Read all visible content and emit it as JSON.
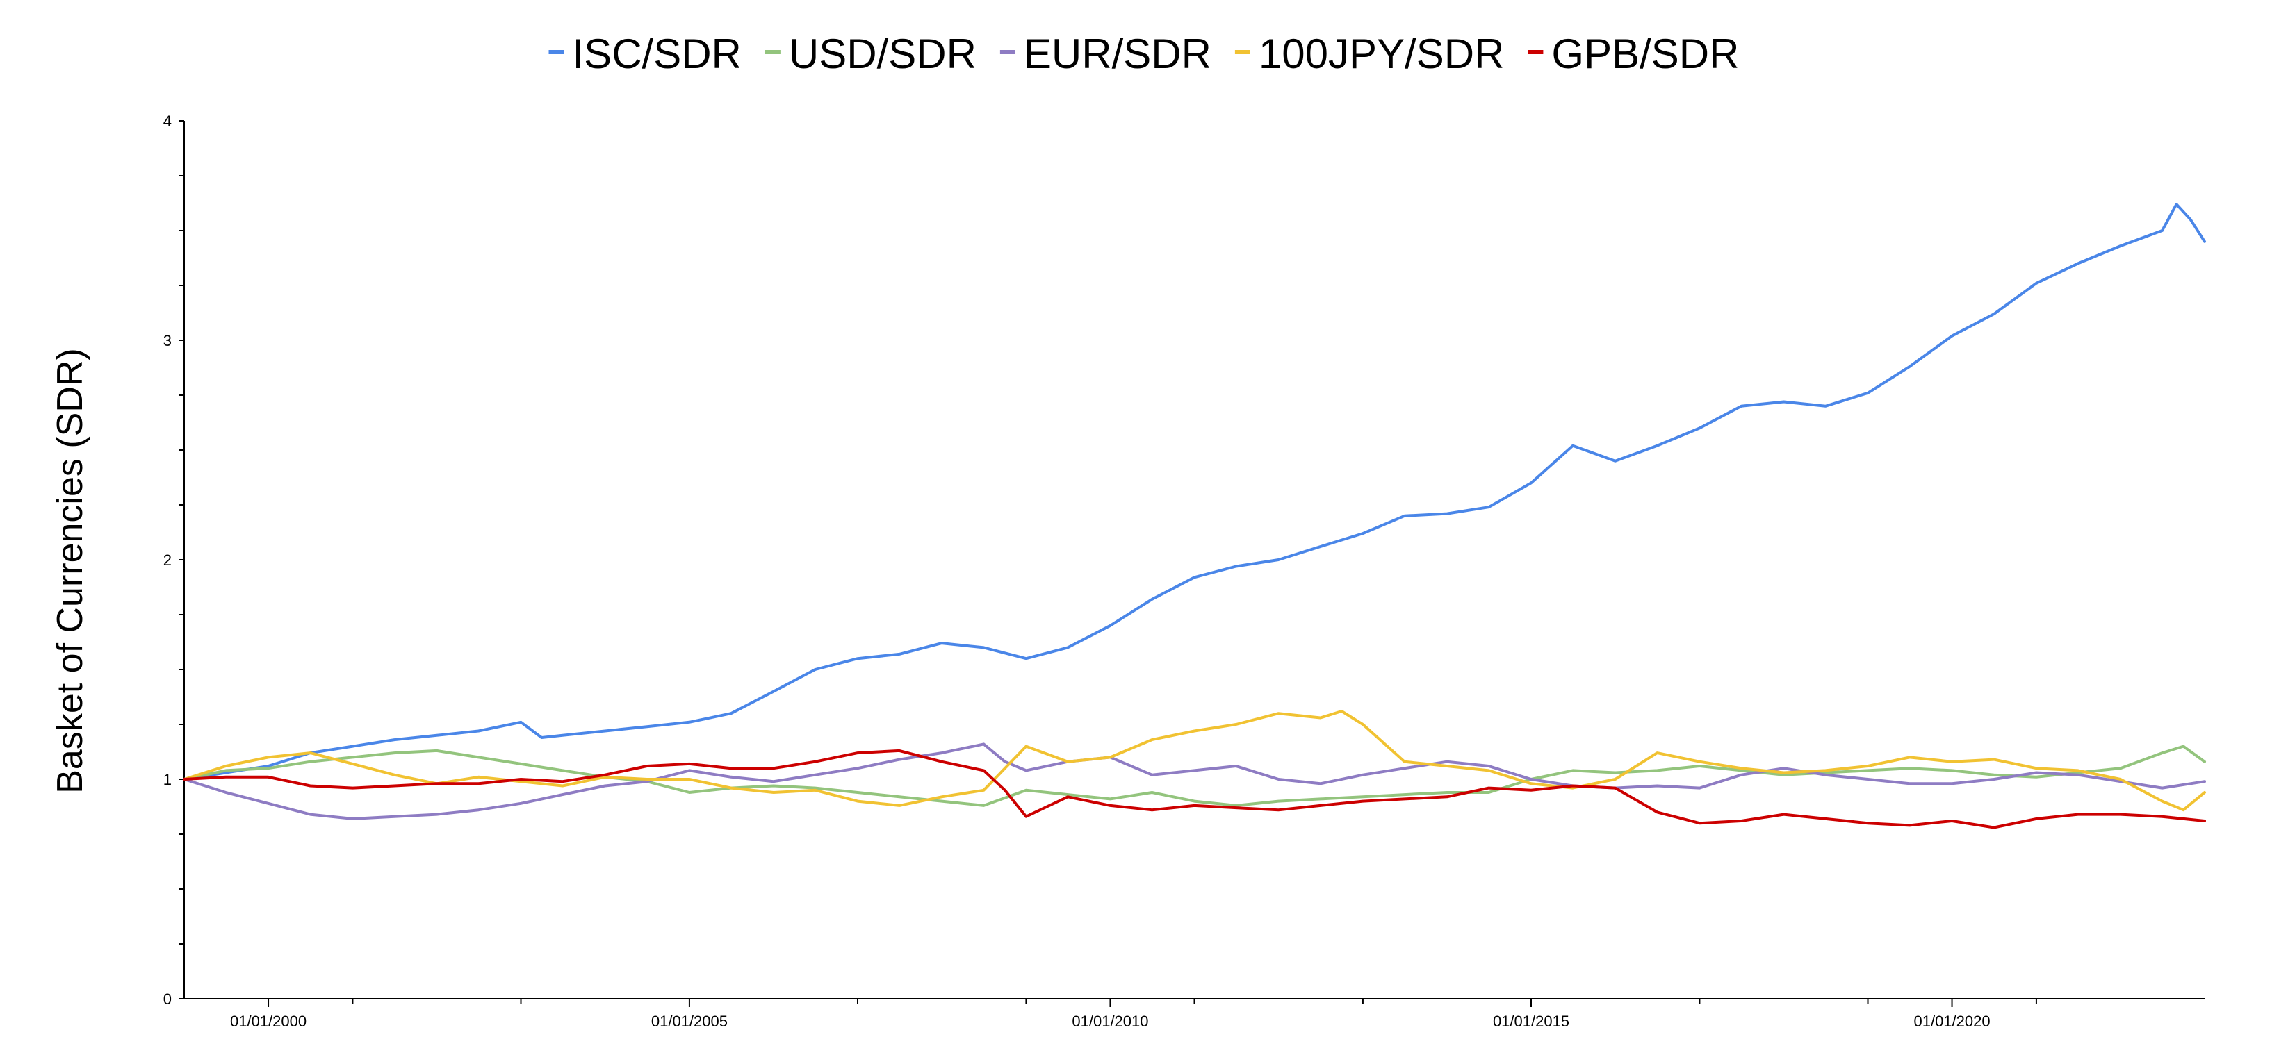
{
  "chart_data": {
    "type": "line",
    "title": "",
    "xlabel": "",
    "ylabel": "Basket of Currencies (SDR)",
    "xlim": [
      "1999-01-01",
      "2023-01-01"
    ],
    "ylim": [
      0,
      4
    ],
    "y_ticks": [
      0,
      1,
      2,
      3,
      4
    ],
    "x_ticks": [
      {
        "date": "2000-01-01",
        "label": "01/01/2000"
      },
      {
        "date": "2005-01-01",
        "label": "01/01/2005"
      },
      {
        "date": "2010-01-01",
        "label": "01/01/2010"
      },
      {
        "date": "2015-01-01",
        "label": "01/01/2015"
      },
      {
        "date": "2020-01-01",
        "label": "01/01/2020"
      }
    ],
    "legend_position": "top",
    "grid": false,
    "series": [
      {
        "name": "ISC/SDR",
        "color": "#4a86e8",
        "points": [
          [
            "1999-01-01",
            1.0
          ],
          [
            "1999-07-01",
            1.03
          ],
          [
            "2000-01-01",
            1.06
          ],
          [
            "2000-07-01",
            1.12
          ],
          [
            "2001-01-01",
            1.15
          ],
          [
            "2001-07-01",
            1.18
          ],
          [
            "2002-01-01",
            1.2
          ],
          [
            "2002-07-01",
            1.22
          ],
          [
            "2003-01-01",
            1.26
          ],
          [
            "2003-04-01",
            1.19
          ],
          [
            "2003-07-01",
            1.2
          ],
          [
            "2004-01-01",
            1.22
          ],
          [
            "2004-07-01",
            1.24
          ],
          [
            "2005-01-01",
            1.26
          ],
          [
            "2005-07-01",
            1.3
          ],
          [
            "2006-01-01",
            1.4
          ],
          [
            "2006-07-01",
            1.5
          ],
          [
            "2007-01-01",
            1.55
          ],
          [
            "2007-07-01",
            1.57
          ],
          [
            "2008-01-01",
            1.62
          ],
          [
            "2008-07-01",
            1.6
          ],
          [
            "2009-01-01",
            1.55
          ],
          [
            "2009-07-01",
            1.6
          ],
          [
            "2010-01-01",
            1.7
          ],
          [
            "2010-07-01",
            1.82
          ],
          [
            "2011-01-01",
            1.92
          ],
          [
            "2011-07-01",
            1.97
          ],
          [
            "2012-01-01",
            2.0
          ],
          [
            "2012-07-01",
            2.06
          ],
          [
            "2013-01-01",
            2.12
          ],
          [
            "2013-07-01",
            2.2
          ],
          [
            "2014-01-01",
            2.21
          ],
          [
            "2014-07-01",
            2.24
          ],
          [
            "2015-01-01",
            2.35
          ],
          [
            "2015-07-01",
            2.52
          ],
          [
            "2016-01-01",
            2.45
          ],
          [
            "2016-07-01",
            2.52
          ],
          [
            "2017-01-01",
            2.6
          ],
          [
            "2017-07-01",
            2.7
          ],
          [
            "2018-01-01",
            2.72
          ],
          [
            "2018-07-01",
            2.7
          ],
          [
            "2019-01-01",
            2.76
          ],
          [
            "2019-07-01",
            2.88
          ],
          [
            "2020-01-01",
            3.02
          ],
          [
            "2020-07-01",
            3.12
          ],
          [
            "2021-01-01",
            3.26
          ],
          [
            "2021-07-01",
            3.35
          ],
          [
            "2022-01-01",
            3.43
          ],
          [
            "2022-07-01",
            3.5
          ],
          [
            "2022-09-01",
            3.62
          ],
          [
            "2022-11-01",
            3.55
          ],
          [
            "2023-01-01",
            3.45
          ]
        ]
      },
      {
        "name": "USD/SDR",
        "color": "#93c47d",
        "points": [
          [
            "1999-01-01",
            1.0
          ],
          [
            "1999-07-01",
            1.04
          ],
          [
            "2000-01-01",
            1.05
          ],
          [
            "2000-07-01",
            1.08
          ],
          [
            "2001-01-01",
            1.1
          ],
          [
            "2001-07-01",
            1.12
          ],
          [
            "2002-01-01",
            1.13
          ],
          [
            "2002-07-01",
            1.1
          ],
          [
            "2003-01-01",
            1.07
          ],
          [
            "2003-07-01",
            1.04
          ],
          [
            "2004-01-01",
            1.01
          ],
          [
            "2004-07-01",
            0.99
          ],
          [
            "2005-01-01",
            0.94
          ],
          [
            "2005-07-01",
            0.96
          ],
          [
            "2006-01-01",
            0.97
          ],
          [
            "2006-07-01",
            0.96
          ],
          [
            "2007-01-01",
            0.94
          ],
          [
            "2007-07-01",
            0.92
          ],
          [
            "2008-01-01",
            0.9
          ],
          [
            "2008-07-01",
            0.88
          ],
          [
            "2009-01-01",
            0.95
          ],
          [
            "2009-07-01",
            0.93
          ],
          [
            "2010-01-01",
            0.91
          ],
          [
            "2010-07-01",
            0.94
          ],
          [
            "2011-01-01",
            0.9
          ],
          [
            "2011-07-01",
            0.88
          ],
          [
            "2012-01-01",
            0.9
          ],
          [
            "2012-07-01",
            0.91
          ],
          [
            "2013-01-01",
            0.92
          ],
          [
            "2013-07-01",
            0.93
          ],
          [
            "2014-01-01",
            0.94
          ],
          [
            "2014-07-01",
            0.94
          ],
          [
            "2015-01-01",
            1.0
          ],
          [
            "2015-07-01",
            1.04
          ],
          [
            "2016-01-01",
            1.03
          ],
          [
            "2016-07-01",
            1.04
          ],
          [
            "2017-01-01",
            1.06
          ],
          [
            "2017-07-01",
            1.04
          ],
          [
            "2018-01-01",
            1.02
          ],
          [
            "2018-07-01",
            1.03
          ],
          [
            "2019-01-01",
            1.04
          ],
          [
            "2019-07-01",
            1.05
          ],
          [
            "2020-01-01",
            1.04
          ],
          [
            "2020-07-01",
            1.02
          ],
          [
            "2021-01-01",
            1.01
          ],
          [
            "2021-07-01",
            1.03
          ],
          [
            "2022-01-01",
            1.05
          ],
          [
            "2022-07-01",
            1.12
          ],
          [
            "2022-10-01",
            1.15
          ],
          [
            "2023-01-01",
            1.08
          ]
        ]
      },
      {
        "name": "EUR/SDR",
        "color": "#8e7cc3",
        "points": [
          [
            "1999-01-01",
            1.0
          ],
          [
            "1999-07-01",
            0.94
          ],
          [
            "2000-01-01",
            0.89
          ],
          [
            "2000-07-01",
            0.84
          ],
          [
            "2001-01-01",
            0.82
          ],
          [
            "2001-07-01",
            0.83
          ],
          [
            "2002-01-01",
            0.84
          ],
          [
            "2002-07-01",
            0.86
          ],
          [
            "2003-01-01",
            0.89
          ],
          [
            "2003-07-01",
            0.93
          ],
          [
            "2004-01-01",
            0.97
          ],
          [
            "2004-07-01",
            0.99
          ],
          [
            "2005-01-01",
            1.04
          ],
          [
            "2005-07-01",
            1.01
          ],
          [
            "2006-01-01",
            0.99
          ],
          [
            "2006-07-01",
            1.02
          ],
          [
            "2007-01-01",
            1.05
          ],
          [
            "2007-07-01",
            1.09
          ],
          [
            "2008-01-01",
            1.12
          ],
          [
            "2008-07-01",
            1.16
          ],
          [
            "2008-10-01",
            1.08
          ],
          [
            "2009-01-01",
            1.04
          ],
          [
            "2009-07-01",
            1.08
          ],
          [
            "2010-01-01",
            1.1
          ],
          [
            "2010-07-01",
            1.02
          ],
          [
            "2011-01-01",
            1.04
          ],
          [
            "2011-07-01",
            1.06
          ],
          [
            "2012-01-01",
            1.0
          ],
          [
            "2012-07-01",
            0.98
          ],
          [
            "2013-01-01",
            1.02
          ],
          [
            "2013-07-01",
            1.05
          ],
          [
            "2014-01-01",
            1.08
          ],
          [
            "2014-07-01",
            1.06
          ],
          [
            "2015-01-01",
            1.0
          ],
          [
            "2015-07-01",
            0.97
          ],
          [
            "2016-01-01",
            0.96
          ],
          [
            "2016-07-01",
            0.97
          ],
          [
            "2017-01-01",
            0.96
          ],
          [
            "2017-07-01",
            1.02
          ],
          [
            "2018-01-01",
            1.05
          ],
          [
            "2018-07-01",
            1.02
          ],
          [
            "2019-01-01",
            1.0
          ],
          [
            "2019-07-01",
            0.98
          ],
          [
            "2020-01-01",
            0.98
          ],
          [
            "2020-07-01",
            1.0
          ],
          [
            "2021-01-01",
            1.03
          ],
          [
            "2021-07-01",
            1.02
          ],
          [
            "2022-01-01",
            0.99
          ],
          [
            "2022-07-01",
            0.96
          ],
          [
            "2023-01-01",
            0.99
          ]
        ]
      },
      {
        "name": "100JPY/SDR",
        "color": "#f1c232",
        "points": [
          [
            "1999-01-01",
            1.0
          ],
          [
            "1999-07-01",
            1.06
          ],
          [
            "2000-01-01",
            1.1
          ],
          [
            "2000-07-01",
            1.12
          ],
          [
            "2001-01-01",
            1.07
          ],
          [
            "2001-07-01",
            1.02
          ],
          [
            "2002-01-01",
            0.98
          ],
          [
            "2002-07-01",
            1.01
          ],
          [
            "2003-01-01",
            0.99
          ],
          [
            "2003-07-01",
            0.97
          ],
          [
            "2004-01-01",
            1.01
          ],
          [
            "2004-07-01",
            1.0
          ],
          [
            "2005-01-01",
            1.0
          ],
          [
            "2005-07-01",
            0.96
          ],
          [
            "2006-01-01",
            0.94
          ],
          [
            "2006-07-01",
            0.95
          ],
          [
            "2007-01-01",
            0.9
          ],
          [
            "2007-07-01",
            0.88
          ],
          [
            "2008-01-01",
            0.92
          ],
          [
            "2008-07-01",
            0.95
          ],
          [
            "2009-01-01",
            1.15
          ],
          [
            "2009-07-01",
            1.08
          ],
          [
            "2010-01-01",
            1.1
          ],
          [
            "2010-07-01",
            1.18
          ],
          [
            "2011-01-01",
            1.22
          ],
          [
            "2011-07-01",
            1.25
          ],
          [
            "2012-01-01",
            1.3
          ],
          [
            "2012-07-01",
            1.28
          ],
          [
            "2012-10-01",
            1.31
          ],
          [
            "2013-01-01",
            1.25
          ],
          [
            "2013-07-01",
            1.08
          ],
          [
            "2014-01-01",
            1.06
          ],
          [
            "2014-07-01",
            1.04
          ],
          [
            "2015-01-01",
            0.98
          ],
          [
            "2015-07-01",
            0.96
          ],
          [
            "2016-01-01",
            1.0
          ],
          [
            "2016-07-01",
            1.12
          ],
          [
            "2017-01-01",
            1.08
          ],
          [
            "2017-07-01",
            1.05
          ],
          [
            "2018-01-01",
            1.03
          ],
          [
            "2018-07-01",
            1.04
          ],
          [
            "2019-01-01",
            1.06
          ],
          [
            "2019-07-01",
            1.1
          ],
          [
            "2020-01-01",
            1.08
          ],
          [
            "2020-07-01",
            1.09
          ],
          [
            "2021-01-01",
            1.05
          ],
          [
            "2021-07-01",
            1.04
          ],
          [
            "2022-01-01",
            1.0
          ],
          [
            "2022-07-01",
            0.9
          ],
          [
            "2022-10-01",
            0.86
          ],
          [
            "2023-01-01",
            0.94
          ]
        ]
      },
      {
        "name": "GPB/SDR",
        "color": "#cc0000",
        "points": [
          [
            "1999-01-01",
            1.0
          ],
          [
            "1999-07-01",
            1.01
          ],
          [
            "2000-01-01",
            1.01
          ],
          [
            "2000-07-01",
            0.97
          ],
          [
            "2001-01-01",
            0.96
          ],
          [
            "2001-07-01",
            0.97
          ],
          [
            "2002-01-01",
            0.98
          ],
          [
            "2002-07-01",
            0.98
          ],
          [
            "2003-01-01",
            1.0
          ],
          [
            "2003-07-01",
            0.99
          ],
          [
            "2004-01-01",
            1.02
          ],
          [
            "2004-07-01",
            1.06
          ],
          [
            "2005-01-01",
            1.07
          ],
          [
            "2005-07-01",
            1.05
          ],
          [
            "2006-01-01",
            1.05
          ],
          [
            "2006-07-01",
            1.08
          ],
          [
            "2007-01-01",
            1.12
          ],
          [
            "2007-07-01",
            1.13
          ],
          [
            "2008-01-01",
            1.08
          ],
          [
            "2008-07-01",
            1.04
          ],
          [
            "2008-10-01",
            0.95
          ],
          [
            "2009-01-01",
            0.83
          ],
          [
            "2009-07-01",
            0.92
          ],
          [
            "2010-01-01",
            0.88
          ],
          [
            "2010-07-01",
            0.86
          ],
          [
            "2011-01-01",
            0.88
          ],
          [
            "2011-07-01",
            0.87
          ],
          [
            "2012-01-01",
            0.86
          ],
          [
            "2012-07-01",
            0.88
          ],
          [
            "2013-01-01",
            0.9
          ],
          [
            "2013-07-01",
            0.91
          ],
          [
            "2014-01-01",
            0.92
          ],
          [
            "2014-07-01",
            0.96
          ],
          [
            "2015-01-01",
            0.95
          ],
          [
            "2015-07-01",
            0.97
          ],
          [
            "2016-01-01",
            0.96
          ],
          [
            "2016-07-01",
            0.85
          ],
          [
            "2017-01-01",
            0.8
          ],
          [
            "2017-07-01",
            0.81
          ],
          [
            "2018-01-01",
            0.84
          ],
          [
            "2018-07-01",
            0.82
          ],
          [
            "2019-01-01",
            0.8
          ],
          [
            "2019-07-01",
            0.79
          ],
          [
            "2020-01-01",
            0.81
          ],
          [
            "2020-07-01",
            0.78
          ],
          [
            "2021-01-01",
            0.82
          ],
          [
            "2021-07-01",
            0.84
          ],
          [
            "2022-01-01",
            0.84
          ],
          [
            "2022-07-01",
            0.83
          ],
          [
            "2023-01-01",
            0.81
          ]
        ]
      }
    ]
  }
}
